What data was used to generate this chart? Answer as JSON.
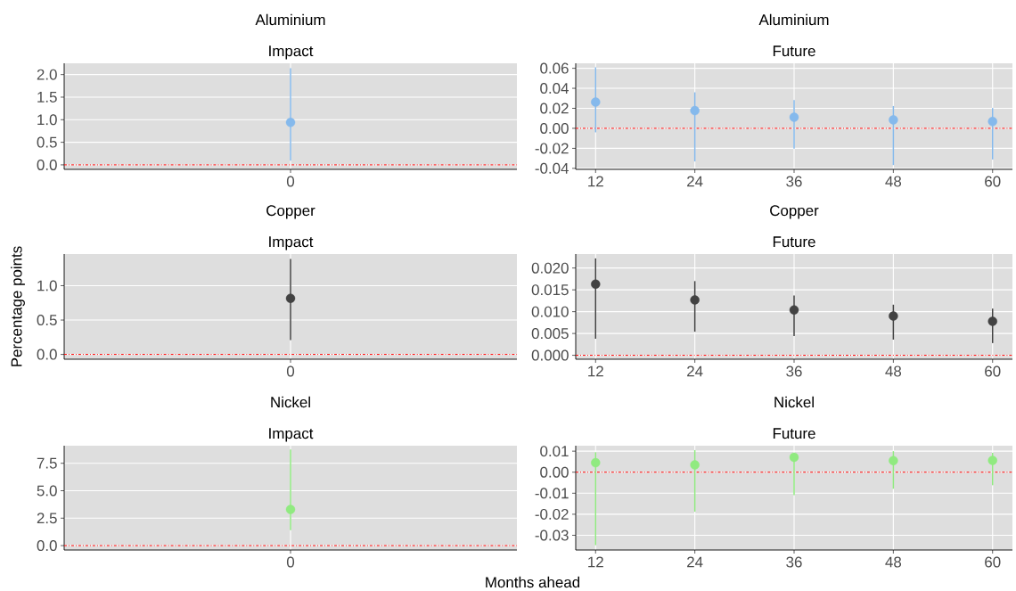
{
  "chart_data": [
    {
      "type": "scatter",
      "title": "Aluminium",
      "subtitle": "Impact",
      "categories": [
        "0"
      ],
      "values": [
        0.94
      ],
      "errors": [
        [
          0.09,
          2.14
        ]
      ],
      "color": "#85b9ec",
      "marker": "circle",
      "grid": true,
      "ylim": [
        -0.1,
        2.25
      ],
      "yticks": [
        {
          "value": 0,
          "label": "0.0"
        },
        0.5,
        {
          "value": 1,
          "label": "1.0"
        },
        1.5,
        {
          "value": 2,
          "label": "2.0"
        }
      ],
      "ref_lines": [
        {
          "axis": "y",
          "value": 0,
          "color": "#ff0000",
          "line_style": "dashdot"
        }
      ]
    },
    {
      "type": "scatter",
      "title": "Aluminium",
      "subtitle": "Future",
      "x": [
        12,
        24,
        36,
        48,
        60
      ],
      "values": [
        0.0262,
        0.0177,
        0.0111,
        0.0085,
        0.0069
      ],
      "errors": [
        [
          -0.004,
          0.061
        ],
        [
          -0.0331,
          0.036
        ],
        [
          -0.0203,
          0.0282
        ],
        [
          -0.0367,
          0.0223
        ],
        [
          -0.0311,
          0.0203
        ]
      ],
      "color": "#85b9ec",
      "marker": "circle",
      "grid": true,
      "xlim": [
        9.6,
        62.4
      ],
      "xticks": [
        12,
        24,
        36,
        48,
        60
      ],
      "ylim": [
        -0.041,
        0.065
      ],
      "yticks": [
        -0.04,
        -0.02,
        {
          "value": 0,
          "label": "0.00"
        },
        0.02,
        0.04,
        0.06
      ],
      "ref_lines": [
        {
          "axis": "y",
          "value": 0,
          "color": "#ff0000",
          "line_style": "dashdot"
        }
      ]
    },
    {
      "type": "scatter",
      "title": "Copper",
      "subtitle": "Impact",
      "ylabel": "Percentage points",
      "categories": [
        "0"
      ],
      "values": [
        0.816
      ],
      "errors": [
        [
          0.21,
          1.39
        ]
      ],
      "color": "#424242",
      "marker": "circle",
      "grid": true,
      "ylim": [
        -0.07,
        1.46
      ],
      "yticks": [
        {
          "value": 0,
          "label": "0.0"
        },
        0.5,
        {
          "value": 1,
          "label": "1.0"
        }
      ],
      "ref_lines": [
        {
          "axis": "y",
          "value": 0,
          "color": "#ff0000",
          "line_style": "dashdot"
        }
      ]
    },
    {
      "type": "scatter",
      "title": "Copper",
      "subtitle": "Future",
      "x": [
        12,
        24,
        36,
        48,
        60
      ],
      "values": [
        0.0163,
        0.0127,
        0.0104,
        0.009,
        0.0078
      ],
      "errors": [
        [
          0.0038,
          0.0222
        ],
        [
          0.0054,
          0.017
        ],
        [
          0.0044,
          0.0137
        ],
        [
          0.0036,
          0.0116
        ],
        [
          0.0028,
          0.0107
        ]
      ],
      "color": "#424242",
      "marker": "circle",
      "grid": true,
      "xlim": [
        9.6,
        62.4
      ],
      "xticks": [
        12,
        24,
        36,
        48,
        60
      ],
      "ylim": [
        -0.0009,
        0.0232
      ],
      "yticks": [
        {
          "value": 0,
          "label": "0.000"
        },
        0.005,
        {
          "value": 0.01,
          "label": "0.010"
        },
        0.015,
        {
          "value": 0.02,
          "label": "0.020"
        }
      ],
      "ref_lines": [
        {
          "axis": "y",
          "value": 0,
          "color": "#ff0000",
          "line_style": "dashdot"
        }
      ]
    },
    {
      "type": "scatter",
      "title": "Nickel",
      "subtitle": "Impact",
      "categories": [
        "0"
      ],
      "values": [
        3.29
      ],
      "errors": [
        [
          1.4,
          8.75
        ]
      ],
      "color": "#90ea80",
      "marker": "circle",
      "grid": true,
      "ylim": [
        -0.4,
        9.1
      ],
      "yticks": [
        {
          "value": 0,
          "label": "0.0"
        },
        2.5,
        {
          "value": 5,
          "label": "5.0"
        },
        7.5
      ],
      "ref_lines": [
        {
          "axis": "y",
          "value": 0,
          "color": "#ff0000",
          "line_style": "dashdot"
        }
      ]
    },
    {
      "type": "scatter",
      "title": "Nickel",
      "subtitle": "Future",
      "xlabel": "Months ahead",
      "x": [
        12,
        24,
        36,
        48,
        60
      ],
      "values": [
        0.0045,
        0.0035,
        0.0071,
        0.0055,
        0.0056
      ],
      "errors": [
        [
          -0.0347,
          0.0095
        ],
        [
          -0.0188,
          0.0105
        ],
        [
          -0.0109,
          0.0092
        ],
        [
          -0.0079,
          0.01
        ],
        [
          -0.0062,
          0.0092
        ]
      ],
      "color": "#90ea80",
      "marker": "circle",
      "grid": true,
      "xlim": [
        9.6,
        62.4
      ],
      "xticks": [
        12,
        24,
        36,
        48,
        60
      ],
      "ylim": [
        -0.037,
        0.0126
      ],
      "yticks": [
        -0.03,
        -0.02,
        -0.01,
        {
          "value": 0,
          "label": "0.00"
        },
        0.01
      ],
      "ref_lines": [
        {
          "axis": "y",
          "value": 0,
          "color": "#ff0000",
          "line_style": "dashdot"
        }
      ]
    }
  ]
}
